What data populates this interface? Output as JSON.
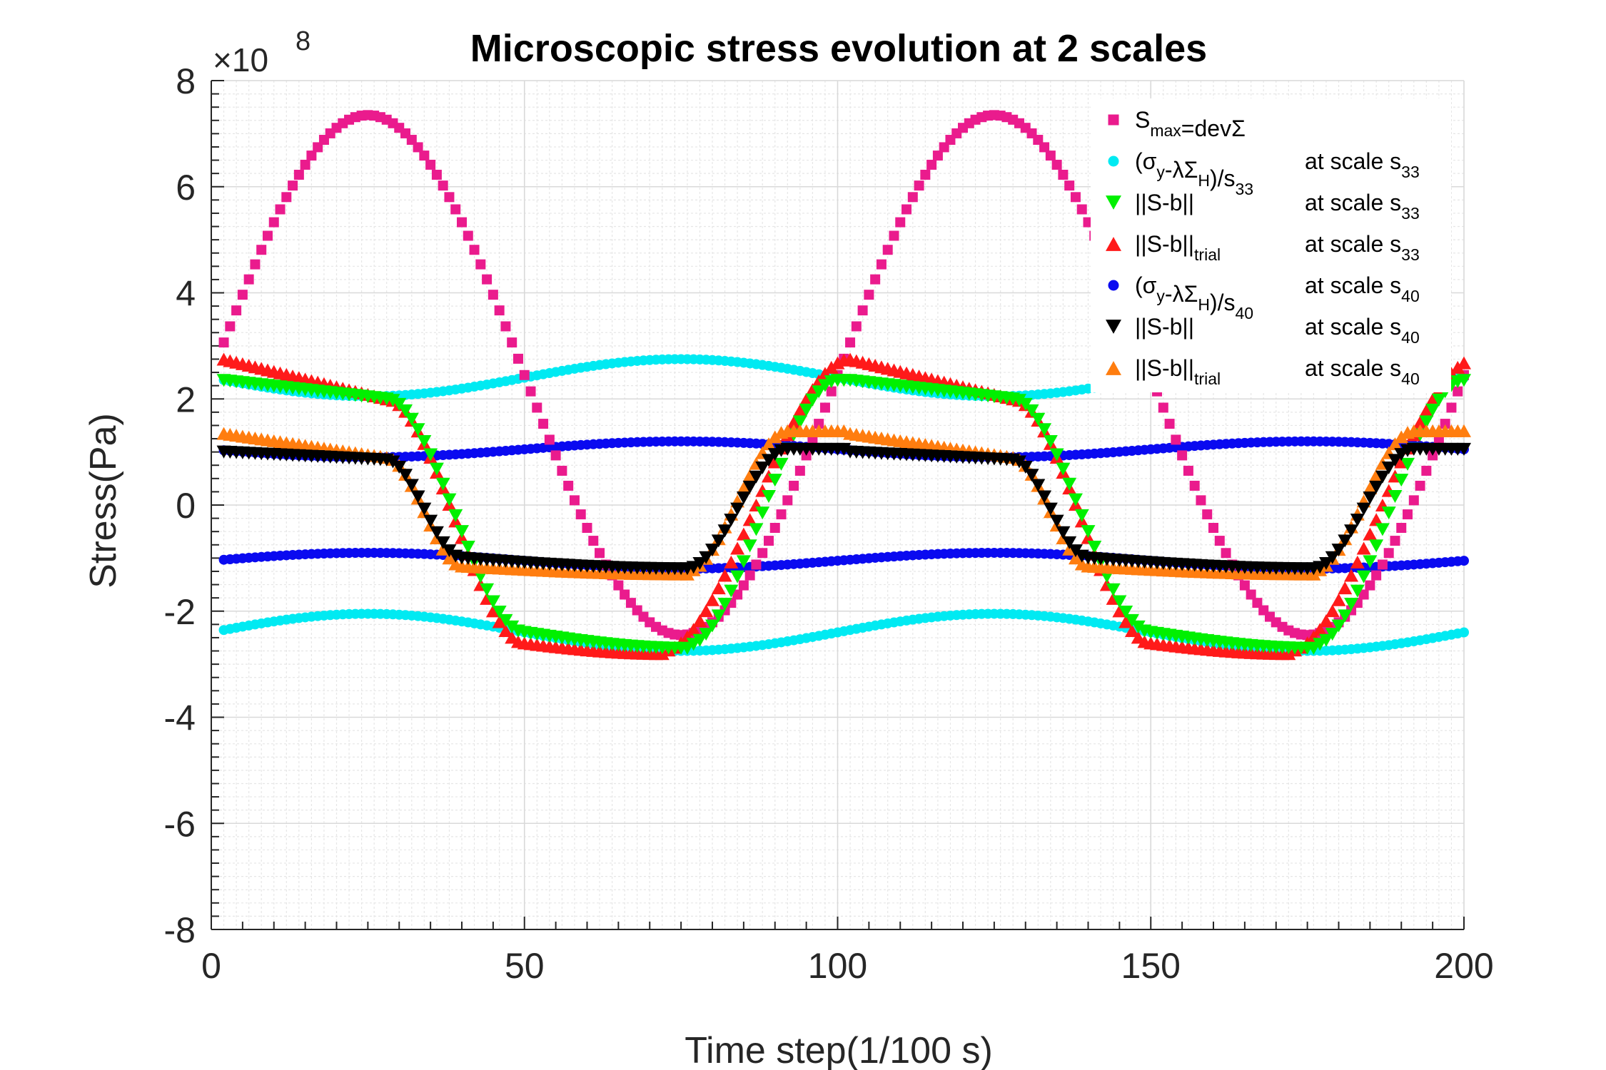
{
  "chart_data": {
    "type": "scatter",
    "title": "Microscopic stress evolution at 2 scales",
    "xlabel": "Time step(1/100 s)",
    "ylabel": "Stress(Pa)",
    "exponent_label": "×10",
    "exponent_power": "8",
    "xlim": [
      0,
      200
    ],
    "ylim": [
      -8,
      8
    ],
    "xticks": [
      "0",
      "50",
      "100",
      "150",
      "200"
    ],
    "yticks": [
      "8",
      "6",
      "4",
      "2",
      "0",
      "-2",
      "-4",
      "-6",
      "-8"
    ],
    "grid": true,
    "minor_grid": true,
    "legend_position": "top-right",
    "x_range_samples": [
      2,
      200
    ],
    "series": [
      {
        "key": "smax",
        "marker": "square",
        "color": "#ea1b8d",
        "legend": {
          "main": "S",
          "sub": "max",
          "rest": "=devΣ",
          "scale_main": "",
          "scale_sub": ""
        },
        "description_points": [
          {
            "x": 2,
            "y": 3.1
          },
          {
            "x": 25,
            "y": 7.35
          },
          {
            "x": 50,
            "y": 2.5
          },
          {
            "x": 75,
            "y": -2.45
          },
          {
            "x": 100,
            "y": 2.5
          },
          {
            "x": 125,
            "y": 7.35
          },
          {
            "x": 150,
            "y": 2.5
          },
          {
            "x": 175,
            "y": -2.45
          },
          {
            "x": 200,
            "y": 2.5
          }
        ]
      },
      {
        "key": "cyan_upper",
        "marker": "circle",
        "color": "#00eaf2",
        "legend": {
          "main": "(σ",
          "sub": "y",
          "rest": "-λΣ",
          "sub2": "H",
          "rest2": ")/s",
          "sub3": "33",
          "scale_main": "at scale s",
          "scale_sub": "33"
        },
        "description_points": [
          {
            "x": 27,
            "y": 2.05
          },
          {
            "x": 77,
            "y": 2.75
          },
          {
            "x": 127,
            "y": 2.05
          },
          {
            "x": 177,
            "y": 2.75
          }
        ]
      },
      {
        "key": "cyan_lower",
        "marker": "circle",
        "color": "#00eaf2",
        "legend": null,
        "description_points": [
          {
            "x": 2,
            "y": -2.35
          },
          {
            "x": 27,
            "y": -2.05
          },
          {
            "x": 77,
            "y": -2.75
          },
          {
            "x": 127,
            "y": -2.05
          },
          {
            "x": 177,
            "y": -2.75
          },
          {
            "x": 200,
            "y": -2.4
          }
        ]
      },
      {
        "key": "green_tri_down",
        "marker": "triangle-down",
        "color": "#00f000",
        "legend": {
          "main": "||S-b||",
          "scale_main": "at scale s",
          "scale_sub": "33"
        },
        "description_points": [
          {
            "x": 2,
            "y": 2.35
          },
          {
            "x": 28,
            "y": 2.0
          },
          {
            "x": 50,
            "y": -2.4
          },
          {
            "x": 76,
            "y": -2.7
          },
          {
            "x": 100,
            "y": 2.4
          }
        ]
      },
      {
        "key": "red_tri_up",
        "marker": "triangle-up",
        "color": "#ff1a1a",
        "legend": {
          "main": "||S-b||",
          "sub": "trial",
          "scale_main": "at scale s",
          "scale_sub": "33"
        },
        "description_points": [
          {
            "x": 2,
            "y": 2.75
          },
          {
            "x": 28,
            "y": 2.0
          },
          {
            "x": 50,
            "y": -2.6
          },
          {
            "x": 76,
            "y": -2.75
          },
          {
            "x": 102,
            "y": 2.75
          }
        ]
      },
      {
        "key": "blue_upper",
        "marker": "circle",
        "color": "#0a0af0",
        "legend": {
          "main": "(σ",
          "sub": "y",
          "rest": "-λΣ",
          "sub2": "H",
          "rest2": ")/s",
          "sub3": "40",
          "scale_main": "at scale s",
          "scale_sub": "40"
        },
        "description_points": [
          {
            "x": 27,
            "y": 0.9
          },
          {
            "x": 77,
            "y": 1.2
          },
          {
            "x": 127,
            "y": 0.9
          },
          {
            "x": 177,
            "y": 1.2
          }
        ]
      },
      {
        "key": "blue_lower",
        "marker": "circle",
        "color": "#0a0af0",
        "legend": null,
        "description_points": [
          {
            "x": 2,
            "y": -1.02
          },
          {
            "x": 27,
            "y": -0.9
          },
          {
            "x": 77,
            "y": -1.2
          },
          {
            "x": 127,
            "y": -0.9
          },
          {
            "x": 177,
            "y": -1.2
          },
          {
            "x": 200,
            "y": -1.05
          }
        ]
      },
      {
        "key": "black_tri_down",
        "marker": "triangle-down",
        "color": "#000000",
        "legend": {
          "main": "||S-b||",
          "scale_main": "at scale s",
          "scale_sub": "40"
        },
        "description_points": [
          {
            "x": 2,
            "y": 1.0
          },
          {
            "x": 28,
            "y": 0.85
          },
          {
            "x": 40,
            "y": -1.0
          },
          {
            "x": 76,
            "y": -1.2
          },
          {
            "x": 92,
            "y": 1.05
          }
        ]
      },
      {
        "key": "orange_tri_up",
        "marker": "triangle-up",
        "color": "#ff7d0f",
        "legend": {
          "main": "||S-b||",
          "sub": "trial",
          "scale_main": "at scale s",
          "scale_sub": "40"
        },
        "description_points": [
          {
            "x": 2,
            "y": 1.35
          },
          {
            "x": 28,
            "y": 0.9
          },
          {
            "x": 40,
            "y": -1.15
          },
          {
            "x": 76,
            "y": -1.25
          },
          {
            "x": 92,
            "y": 1.4
          }
        ]
      }
    ]
  }
}
